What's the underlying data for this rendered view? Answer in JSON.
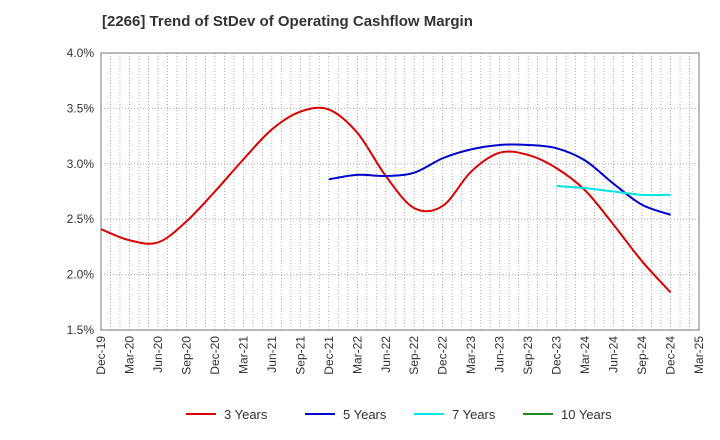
{
  "chart_data": {
    "type": "line",
    "title": "[2266]  Trend of StDev of Operating Cashflow Margin",
    "xlabel": "",
    "ylabel": "",
    "ylim": [
      1.5,
      4.0
    ],
    "y_ticks": [
      "1.5%",
      "2.0%",
      "2.5%",
      "3.0%",
      "3.5%",
      "4.0%"
    ],
    "x_ticks": [
      "Dec-19",
      "Mar-20",
      "Jun-20",
      "Sep-20",
      "Dec-20",
      "Mar-21",
      "Jun-21",
      "Sep-21",
      "Dec-21",
      "Mar-22",
      "Jun-22",
      "Sep-22",
      "Dec-22",
      "Mar-23",
      "Jun-23",
      "Sep-23",
      "Dec-23",
      "Mar-24",
      "Jun-24",
      "Sep-24",
      "Dec-24",
      "Mar-25"
    ],
    "grid": true,
    "legend_position": "bottom",
    "series": [
      {
        "name": "3 Years",
        "color": "#dd0000",
        "x": [
          "Dec-19",
          "Mar-20",
          "Jun-20",
          "Sep-20",
          "Dec-20",
          "Mar-21",
          "Jun-21",
          "Sep-21",
          "Dec-21",
          "Mar-22",
          "Jun-22",
          "Sep-22",
          "Dec-22",
          "Mar-23",
          "Jun-23",
          "Sep-23",
          "Dec-23",
          "Mar-24",
          "Jun-24",
          "Sep-24",
          "Dec-24"
        ],
        "values": [
          2.41,
          2.31,
          2.29,
          2.48,
          2.75,
          3.04,
          3.31,
          3.47,
          3.49,
          3.28,
          2.89,
          2.6,
          2.62,
          2.93,
          3.1,
          3.08,
          2.96,
          2.76,
          2.45,
          2.12,
          1.84
        ]
      },
      {
        "name": "5 Years",
        "color": "#0000cc",
        "x": [
          "Dec-21",
          "Mar-22",
          "Jun-22",
          "Sep-22",
          "Dec-22",
          "Mar-23",
          "Jun-23",
          "Sep-23",
          "Dec-23",
          "Mar-24",
          "Jun-24",
          "Sep-24",
          "Dec-24"
        ],
        "values": [
          2.86,
          2.9,
          2.89,
          2.92,
          3.05,
          3.13,
          3.17,
          3.17,
          3.14,
          3.03,
          2.82,
          2.63,
          2.54
        ]
      },
      {
        "name": "7 Years",
        "color": "#00e5e5",
        "x": [
          "Dec-23",
          "Mar-24",
          "Jun-24",
          "Sep-24",
          "Dec-24"
        ],
        "values": [
          2.8,
          2.78,
          2.75,
          2.72,
          2.72
        ]
      },
      {
        "name": "10 Years",
        "color": "#228b22",
        "x": [],
        "values": []
      }
    ]
  }
}
